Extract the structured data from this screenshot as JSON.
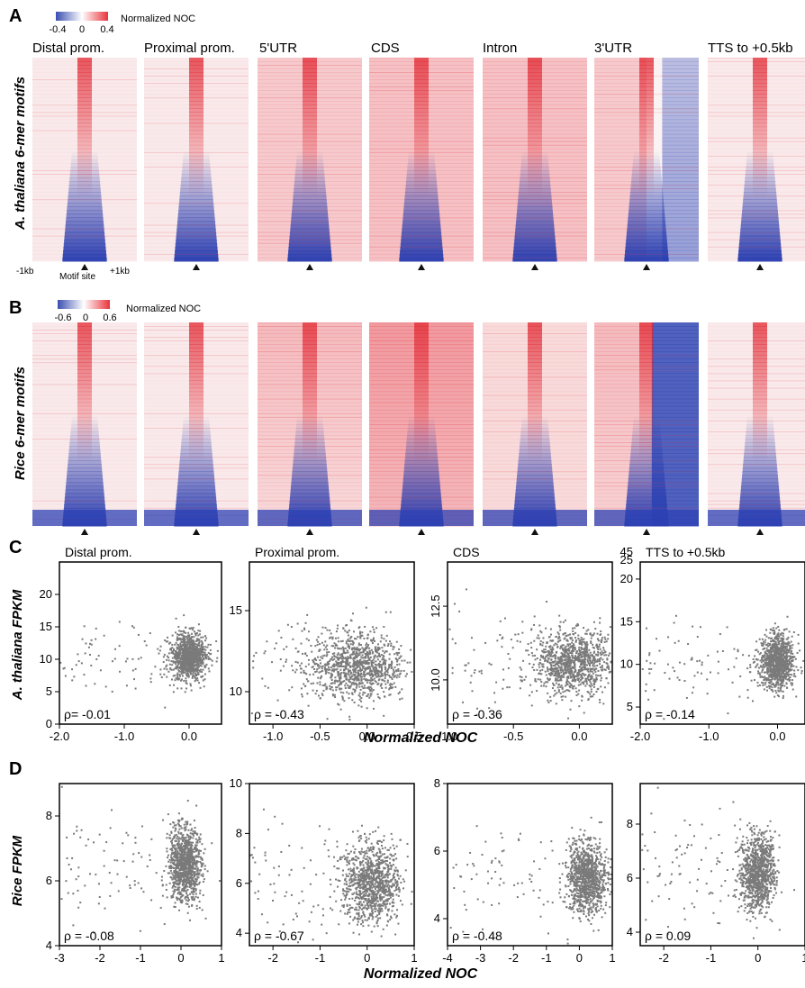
{
  "panel_letters": [
    "A",
    "B",
    "C",
    "D"
  ],
  "heatmap_panels": {
    "A": {
      "species_label": "A. thaliana 6-mer motifs",
      "colorbar": {
        "min_label": "-0.4",
        "mid_label": "0",
        "max_label": "0.4",
        "title": "Normalized NOC",
        "colors": [
          "#3b4fb0",
          "#ffffff",
          "#e8343c"
        ]
      },
      "region_titles": [
        "Distal prom.",
        "Proximal prom.",
        "5'UTR",
        "CDS",
        "Intron",
        "3'UTR",
        "TTS to +0.5kb"
      ],
      "x_labels": {
        "left": "-1kb",
        "center": "Motif site",
        "right": "+1kb"
      }
    },
    "B": {
      "species_label": "Rice 6-mer motifs",
      "colorbar": {
        "min_label": "-0.6",
        "mid_label": "0",
        "max_label": "0.6",
        "title": "Normalized NOC",
        "colors": [
          "#3b4fb0",
          "#ffffff",
          "#e8343c"
        ]
      }
    }
  },
  "chart_data": [
    {
      "type": "scatter",
      "panel": "C",
      "title": "Distal prom.",
      "ylabel": "A. thaliana FPKM",
      "xlabel": "Normalized NOC",
      "xlim": [
        -2.0,
        0.5
      ],
      "ylim": [
        0,
        25
      ],
      "xticks": [
        "-2.0",
        "-1.0",
        "0.0"
      ],
      "yticks": [
        "0",
        "5",
        "10",
        "15",
        "20"
      ],
      "rho_label": "ρ= -0.01",
      "cluster": {
        "x_center": 0.0,
        "x_spread": 0.13,
        "y_center": 10.3,
        "y_spread": 1.7
      }
    },
    {
      "type": "scatter",
      "panel": "C",
      "title": "Proximal prom.",
      "ylabel": "A. thaliana FPKM",
      "xlabel": "Normalized NOC",
      "xlim": [
        -1.25,
        0.5
      ],
      "ylim": [
        8,
        18
      ],
      "xticks": [
        "-1.0",
        "-0.5",
        "0.0",
        "0.5"
      ],
      "yticks": [
        "10",
        "15"
      ],
      "rho_label": "ρ = -0.43",
      "cluster": {
        "x_center": -0.1,
        "x_spread": 0.25,
        "y_center": 11.6,
        "y_spread": 1.0
      }
    },
    {
      "type": "scatter",
      "panel": "C",
      "title": "CDS",
      "ylabel": "A. thaliana FPKM",
      "xlabel": "Normalized NOC",
      "xlim": [
        -1.0,
        0.25
      ],
      "ylim": [
        8.5,
        14
      ],
      "xticks": [
        "-1.0",
        "-0.5",
        "0.0"
      ],
      "yticks": [
        "10.0",
        "12.5"
      ],
      "rho_label": "ρ = -0.36",
      "cluster": {
        "x_center": -0.05,
        "x_spread": 0.14,
        "y_center": 10.6,
        "y_spread": 0.55
      }
    },
    {
      "type": "scatter",
      "panel": "C",
      "title": "TTS to +0.5kb",
      "ylabel": "A. thaliana FPKM",
      "xlabel": "Normalized NOC",
      "xlim": [
        -2.0,
        0.4
      ],
      "ylim": [
        3,
        22
      ],
      "xticks": [
        "-2.0",
        "-1.0",
        "0.0"
      ],
      "yticks": [
        "5",
        "10",
        "15",
        "20"
      ],
      "top_break_ticks": [
        "25",
        "45"
      ],
      "rho_label": "ρ = -0.14",
      "cluster": {
        "x_center": 0.0,
        "x_spread": 0.12,
        "y_center": 10.3,
        "y_spread": 1.6
      }
    },
    {
      "type": "scatter",
      "panel": "D",
      "ylabel": "Rice FPKM",
      "xlabel": "Normalized NOC",
      "xlim": [
        -3,
        1
      ],
      "ylim": [
        4,
        9
      ],
      "xticks": [
        "-3",
        "-2",
        "-1",
        "0",
        "1"
      ],
      "yticks": [
        "4",
        "6",
        "8"
      ],
      "rho_label": "ρ = -0.08",
      "cluster": {
        "x_center": 0.1,
        "x_spread": 0.2,
        "y_center": 6.5,
        "y_spread": 0.55
      }
    },
    {
      "type": "scatter",
      "panel": "D",
      "ylabel": "Rice FPKM",
      "xlabel": "Normalized NOC",
      "xlim": [
        -2.5,
        1
      ],
      "ylim": [
        3.5,
        10
      ],
      "xticks": [
        "-2",
        "-1",
        "0",
        "1"
      ],
      "yticks": [
        "4",
        "6",
        "8",
        "10"
      ],
      "rho_label": "ρ = -0.67",
      "cluster": {
        "x_center": 0.1,
        "x_spread": 0.3,
        "y_center": 6.0,
        "y_spread": 0.8
      }
    },
    {
      "type": "scatter",
      "panel": "D",
      "ylabel": "Rice FPKM",
      "xlabel": "Normalized NOC",
      "xlim": [
        -4,
        1
      ],
      "ylim": [
        3.2,
        8
      ],
      "xticks": [
        "-4",
        "-3",
        "-2",
        "-1",
        "0",
        "1"
      ],
      "yticks": [
        "4",
        "6",
        "8"
      ],
      "rho_label": "ρ = -0.48",
      "cluster": {
        "x_center": 0.25,
        "x_spread": 0.3,
        "y_center": 5.2,
        "y_spread": 0.5
      }
    },
    {
      "type": "scatter",
      "panel": "D",
      "ylabel": "Rice FPKM",
      "xlabel": "Normalized NOC",
      "xlim": [
        -2.5,
        1
      ],
      "ylim": [
        3.5,
        9.5
      ],
      "xticks": [
        "-2",
        "-1",
        "0",
        "1"
      ],
      "yticks": [
        "4",
        "6",
        "8"
      ],
      "rho_label": "ρ = 0.09",
      "cluster": {
        "x_center": 0.0,
        "x_spread": 0.18,
        "y_center": 6.2,
        "y_spread": 0.7
      }
    }
  ]
}
